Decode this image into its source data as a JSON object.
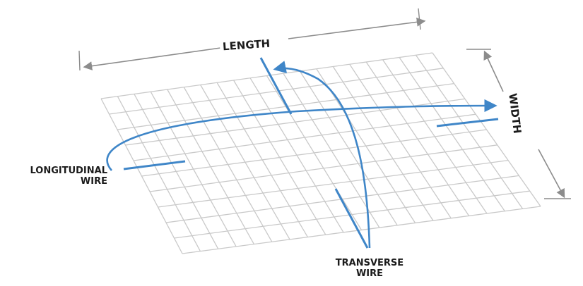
{
  "dimensions": {
    "length_label": "LENGTH",
    "width_label": "WIDTH"
  },
  "callouts": {
    "longitudinal_line1": "LONGITUDINAL",
    "longitudinal_line2": "WIRE",
    "transverse_line1": "TRANSVERSE",
    "transverse_line2": "WIRE"
  },
  "colors": {
    "grid": "#c9c9c9",
    "wire_highlight": "#3f86c8",
    "arrow": "#3f86c8",
    "dimension_line": "#8c8c8c",
    "text": "#1b1b1b"
  }
}
